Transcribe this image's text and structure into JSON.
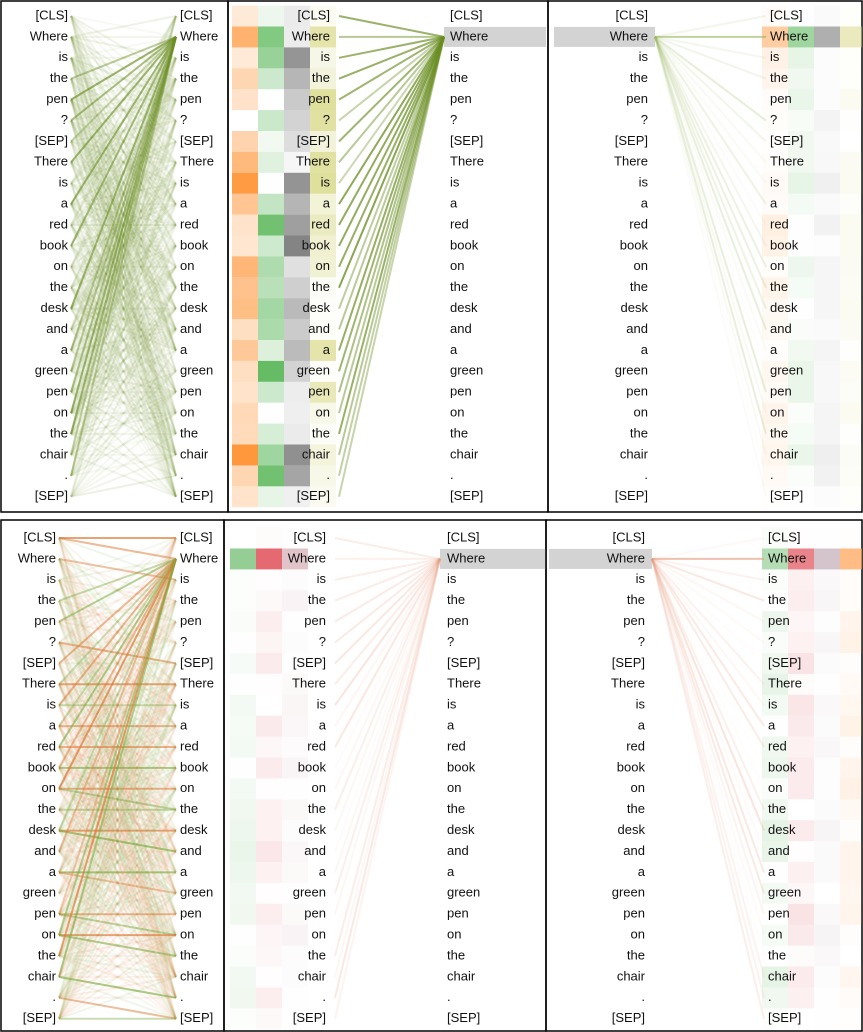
{
  "tokens": [
    "[CLS]",
    "Where",
    "is",
    "the",
    "pen",
    "?",
    "[SEP]",
    "There",
    "is",
    "a",
    "red",
    "book",
    "on",
    "the",
    "desk",
    "and",
    "a",
    "green",
    "pen",
    "on",
    "the",
    "chair",
    ".",
    "[SEP]"
  ]
}
